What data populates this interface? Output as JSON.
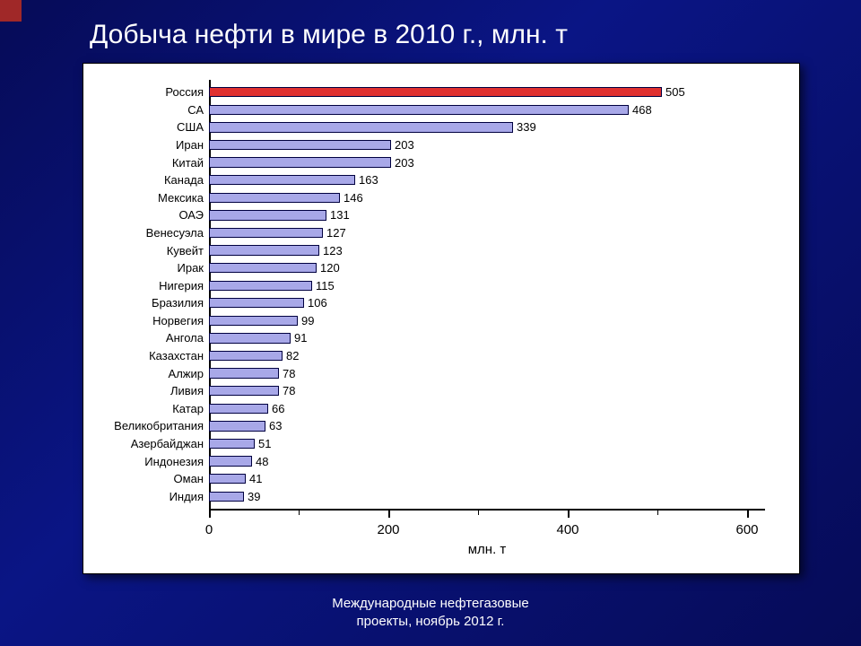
{
  "slide": {
    "title": "Добыча нефти в мире в 2010 г., млн. т",
    "footer_line1": "Международные нефтегазовые",
    "footer_line2": "проекты, ноябрь 2012 г.",
    "background_gradient": [
      "#060b57",
      "#0a1585",
      "#060b57"
    ],
    "accent_color": "#a02828",
    "title_color": "#ffffff",
    "title_fontsize": 30
  },
  "chart": {
    "type": "bar-horizontal",
    "panel_background": "#ffffff",
    "panel_border": "#000000",
    "axis_color": "#000000",
    "xlabel": "млн. т",
    "xlim": [
      0,
      620
    ],
    "xticks": [
      0,
      200,
      400,
      600
    ],
    "xtick_minor_step": 100,
    "label_fontsize": 15,
    "value_fontsize": 13,
    "ylabel_fontsize": 13,
    "bar_default_color": "#a8a8e8",
    "bar_highlight_color": "#e03030",
    "bar_border_color": "#000040",
    "bar_width_ratio": 0.78,
    "countries": [
      {
        "name": "Россия",
        "value": 505,
        "highlight": true
      },
      {
        "name": "СА",
        "value": 468
      },
      {
        "name": "США",
        "value": 339
      },
      {
        "name": "Иран",
        "value": 203
      },
      {
        "name": "Китай",
        "value": 203
      },
      {
        "name": "Канада",
        "value": 163
      },
      {
        "name": "Мексика",
        "value": 146
      },
      {
        "name": "ОАЭ",
        "value": 131
      },
      {
        "name": "Венесуэла",
        "value": 127
      },
      {
        "name": "Кувейт",
        "value": 123
      },
      {
        "name": "Ирак",
        "value": 120
      },
      {
        "name": "Нигерия",
        "value": 115
      },
      {
        "name": "Бразилия",
        "value": 106
      },
      {
        "name": "Норвегия",
        "value": 99
      },
      {
        "name": "Ангола",
        "value": 91
      },
      {
        "name": "Казахстан",
        "value": 82
      },
      {
        "name": "Алжир",
        "value": 78
      },
      {
        "name": "Ливия",
        "value": 78
      },
      {
        "name": "Катар",
        "value": 66
      },
      {
        "name": "Великобритания",
        "value": 63
      },
      {
        "name": "Азербайджан",
        "value": 51
      },
      {
        "name": "Индонезия",
        "value": 48
      },
      {
        "name": "Оман",
        "value": 41
      },
      {
        "name": "Индия",
        "value": 39
      }
    ]
  }
}
